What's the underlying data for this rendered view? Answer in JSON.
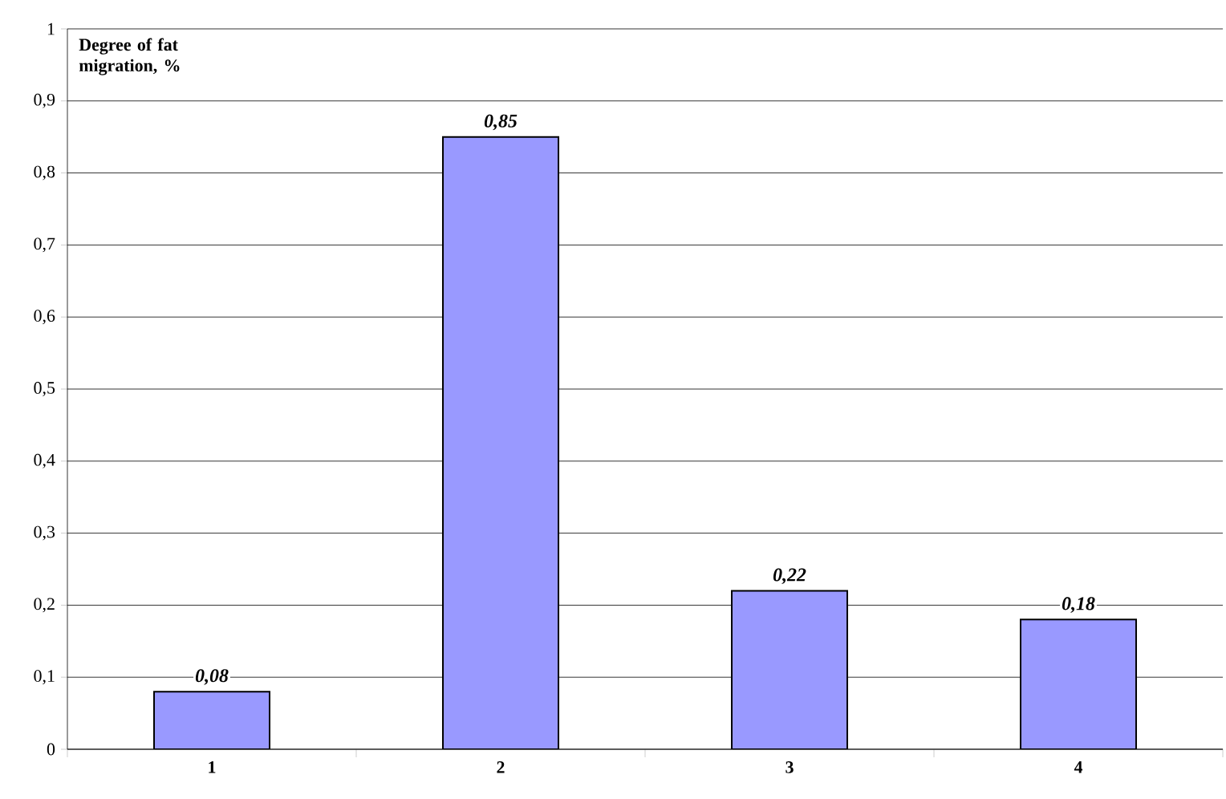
{
  "chart_data": {
    "type": "bar",
    "ylabel": "Degree of fat migration, %",
    "categories": [
      "1",
      "2",
      "3",
      "4"
    ],
    "values": [
      0.08,
      0.85,
      0.22,
      0.18
    ],
    "value_labels": [
      "0,08",
      "0,85",
      "0,22",
      "0,18"
    ],
    "color": "#9999ff",
    "ylim": [
      0,
      1
    ],
    "yticks": [
      {
        "value": 0,
        "label": "0"
      },
      {
        "value": 0.1,
        "label": "0,1"
      },
      {
        "value": 0.2,
        "label": "0,2"
      },
      {
        "value": 0.3,
        "label": "0,3"
      },
      {
        "value": 0.4,
        "label": "0,4"
      },
      {
        "value": 0.5,
        "label": "0,5"
      },
      {
        "value": 0.6,
        "label": "0,6"
      },
      {
        "value": 0.7,
        "label": "0,7"
      },
      {
        "value": 0.8,
        "label": "0,8"
      },
      {
        "value": 0.9,
        "label": "0,9"
      },
      {
        "value": 1,
        "label": "1"
      }
    ],
    "grid": "y"
  }
}
